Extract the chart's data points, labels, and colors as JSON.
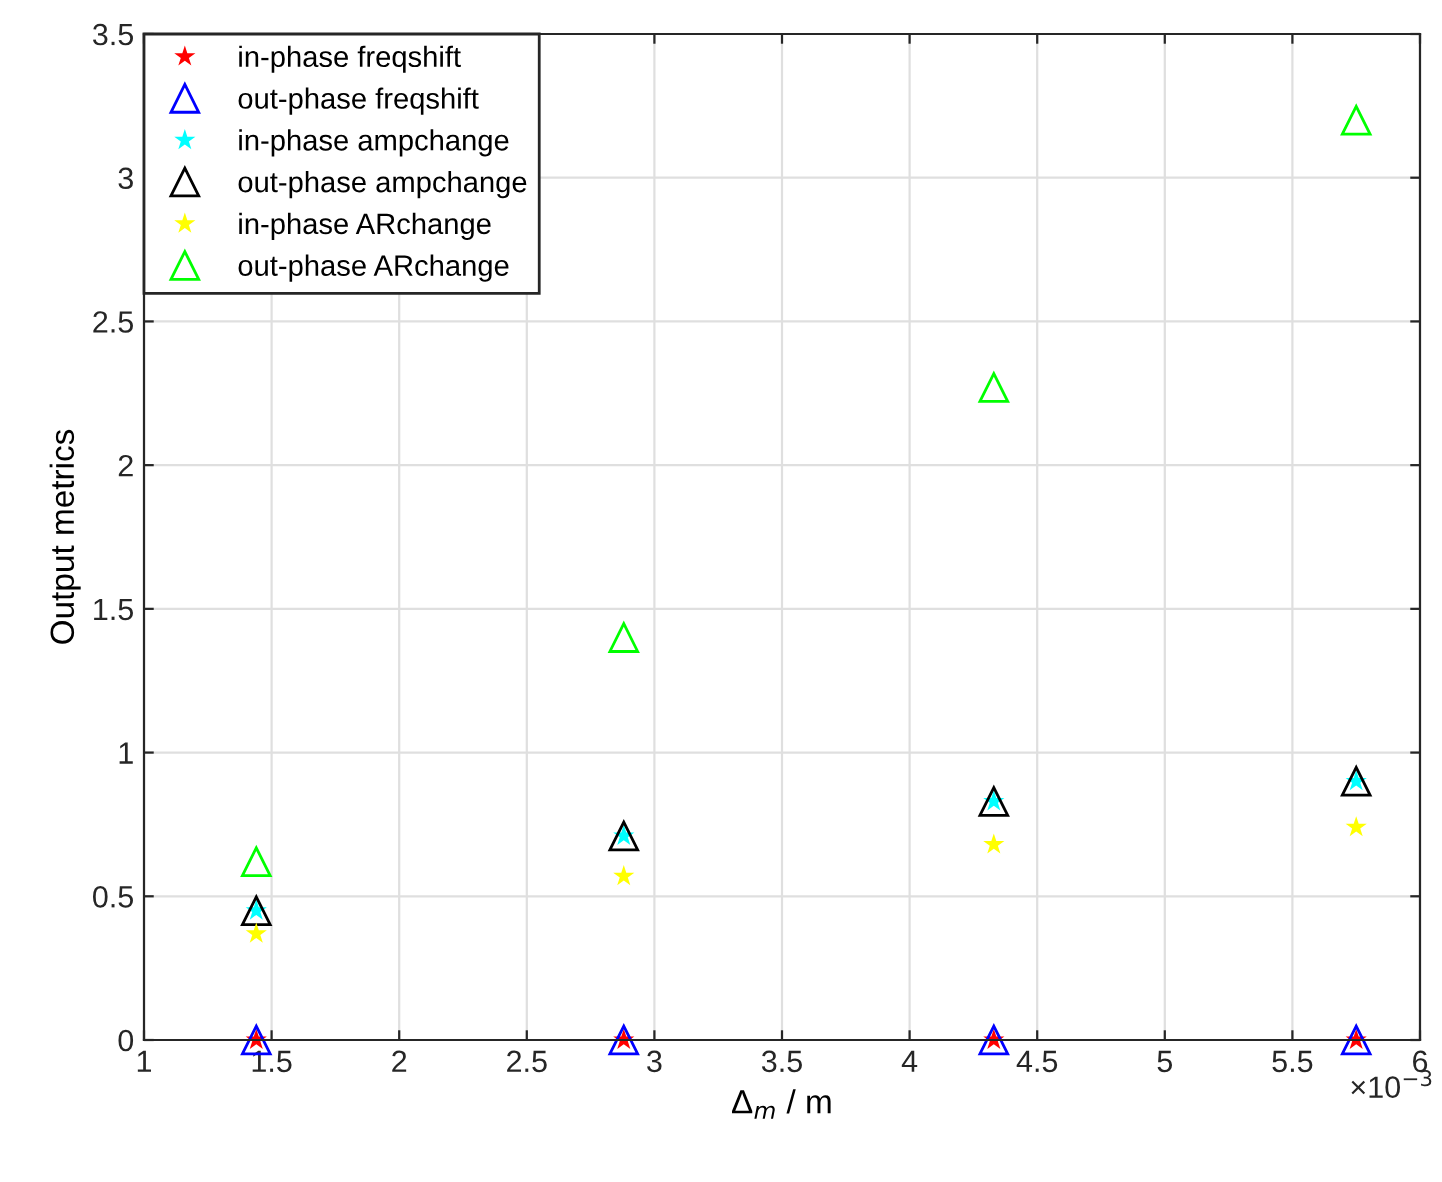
{
  "chart_data": {
    "type": "scatter",
    "xlabel": "Δ$_{m}$ / m",
    "ylabel": "Output metrics",
    "x": [
      1.44,
      2.88,
      4.33,
      5.75
    ],
    "xlim": [
      1,
      6
    ],
    "xticks": [
      1,
      1.5,
      2,
      2.5,
      3,
      3.5,
      4,
      4.5,
      5,
      5.5,
      6
    ],
    "ylim": [
      0,
      3.5
    ],
    "yticks": [
      0,
      0.5,
      1,
      1.5,
      2,
      2.5,
      3,
      3.5
    ],
    "grid": true,
    "legend": "top left",
    "annotations": [
      "×10$^{−3}$"
    ],
    "series": [
      {
        "name": "in-phase freqshift",
        "color": "#ff0000",
        "marker": "star",
        "values": [
          0,
          0,
          0,
          0
        ]
      },
      {
        "name": "out-phase freqshift",
        "color": "#0000ff",
        "marker": "triangle",
        "values": [
          0,
          0,
          0,
          0
        ]
      },
      {
        "name": "in-phase ampchange",
        "color": "#00ffff",
        "marker": "star",
        "values": [
          0.45,
          0.71,
          0.83,
          0.9
        ]
      },
      {
        "name": "out-phase ampchange",
        "color": "#000000",
        "marker": "triangle",
        "values": [
          0.45,
          0.71,
          0.83,
          0.9
        ]
      },
      {
        "name": "in-phase ARchange",
        "color": "#ffff00",
        "marker": "star",
        "values": [
          0.37,
          0.57,
          0.68,
          0.74
        ]
      },
      {
        "name": "out-phase ARchange",
        "color": "#00ff00",
        "marker": "triangle",
        "values": [
          0.62,
          1.4,
          2.27,
          3.2
        ]
      }
    ]
  }
}
